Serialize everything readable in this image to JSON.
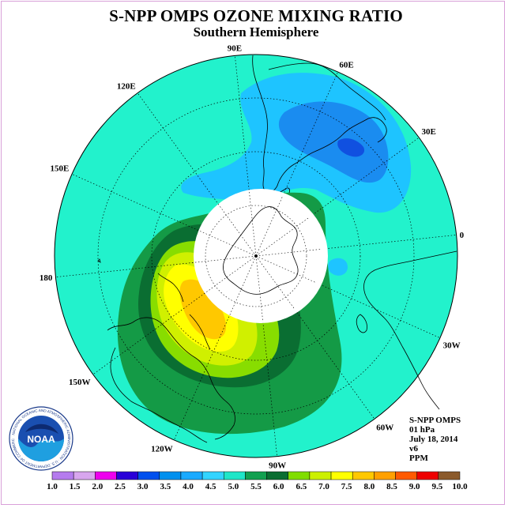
{
  "title": "S-NPP OMPS OZONE MIXING RATIO",
  "subtitle": "Southern Hemisphere",
  "longitude_labels": [
    {
      "text": "90W",
      "lon": -90
    },
    {
      "text": "60W",
      "lon": -60
    },
    {
      "text": "30W",
      "lon": -30
    },
    {
      "text": "0",
      "lon": 0
    },
    {
      "text": "30E",
      "lon": 30
    },
    {
      "text": "60E",
      "lon": 60
    },
    {
      "text": "90E",
      "lon": 90
    },
    {
      "text": "120E",
      "lon": 120
    },
    {
      "text": "150E",
      "lon": 150
    },
    {
      "text": "180",
      "lon": 180
    },
    {
      "text": "150W",
      "lon": -150
    },
    {
      "text": "120W",
      "lon": -120
    }
  ],
  "info": {
    "product": "S-NPP OMPS",
    "level": "01 hPa",
    "date": "July 18, 2014",
    "version": "v6",
    "units": "PPM"
  },
  "logo": {
    "text": "NOAA",
    "ring_text": "NATIONAL OCEANIC AND ATMOSPHERIC ADMINISTRATION · U.S. DEPARTMENT OF COMMERCE"
  },
  "colorbar": {
    "labels": [
      "1.0",
      "1.5",
      "2.0",
      "2.5",
      "3.0",
      "3.5",
      "4.0",
      "4.5",
      "5.0",
      "5.5",
      "6.0",
      "6.5",
      "7.0",
      "7.5",
      "8.0",
      "8.5",
      "9.0",
      "9.5",
      "10.0"
    ],
    "colors": [
      "#b57bee",
      "#d8a6ee",
      "#ee00ee",
      "#2a00d8",
      "#0050ee",
      "#0090ee",
      "#1aaaff",
      "#33d4ff",
      "#1fe6c8",
      "#12a050",
      "#0a6e32",
      "#80dd00",
      "#ccf000",
      "#ffff00",
      "#ffc800",
      "#ffa000",
      "#ff5a00",
      "#ee0000",
      "#8b5a2b"
    ]
  },
  "colors": {
    "background_field": "#22f2cc",
    "blue_light": "#1ec4ff",
    "blue_mid": "#1a8cf0",
    "blue_dark": "#1050e0",
    "green_mid": "#149a46",
    "green_dark": "#0a6e32",
    "lime": "#88dd00",
    "yellow_green": "#d0f000",
    "yellow": "#ffff00",
    "orange": "#ffc800",
    "no_data": "#ffffff"
  }
}
